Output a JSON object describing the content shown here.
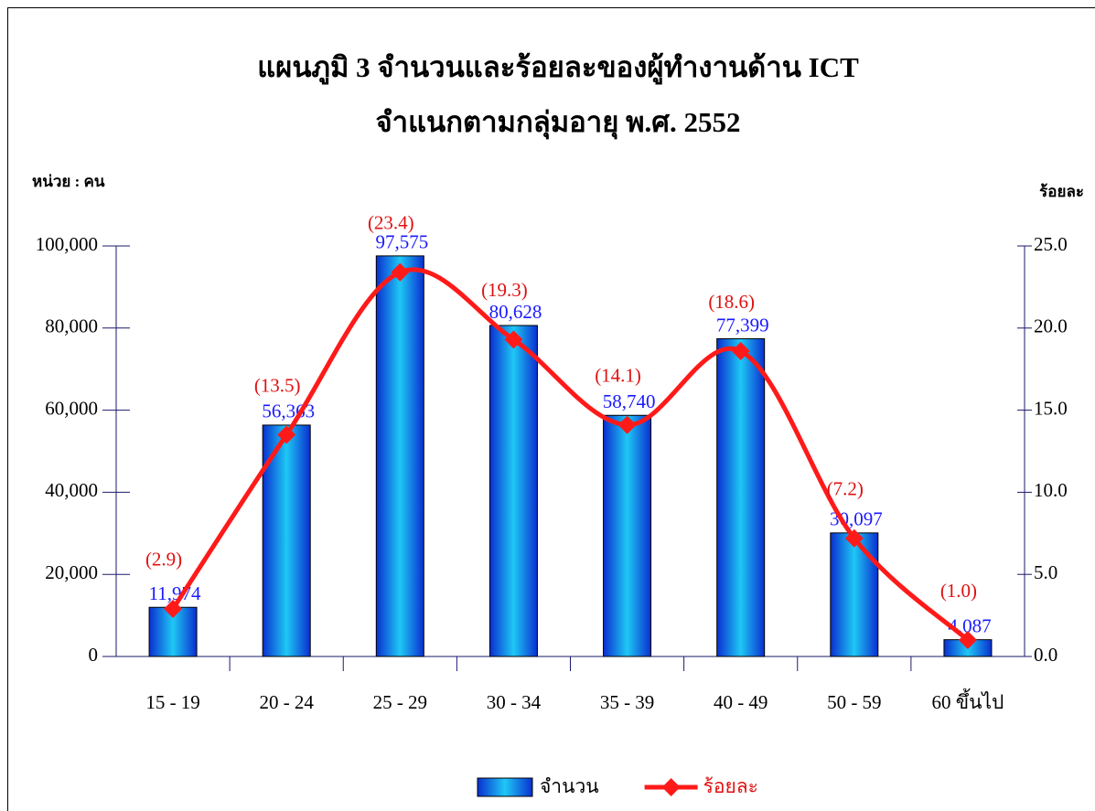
{
  "chart_data": {
    "type": "bar",
    "title": "แผนภูมิ 3   จำนวนและร้อยละของผู้ทำงานด้าน ICT",
    "subtitle": "จำแนกตามกลุ่มอายุ พ.ศ. 2552",
    "ylabel": "หน่วย : คน",
    "y2label": "ร้อยละ",
    "categories": [
      "15 - 19",
      "20 - 24",
      "25 - 29",
      "30 - 34",
      "35 - 39",
      "40 - 49",
      "50 - 59",
      "60 ขึ้นไป"
    ],
    "series": [
      {
        "name": "จำนวน",
        "type": "bar",
        "color": "#1ec8f5",
        "label_color": "#1a1aff",
        "values": [
          11974,
          56363,
          97575,
          80628,
          58740,
          77399,
          30097,
          4087
        ],
        "value_labels": [
          "11,974",
          "56,363",
          "97,575",
          "80,628",
          "58,740",
          "77,399",
          "30,097",
          "4,087"
        ]
      },
      {
        "name": "ร้อยละ",
        "type": "line",
        "axis": "y2",
        "color": "#ff1a1a",
        "label_color": "#e01010",
        "values": [
          2.9,
          13.5,
          23.4,
          19.3,
          14.1,
          18.6,
          7.2,
          1.0
        ],
        "value_labels": [
          "(2.9)",
          "(13.5)",
          "(23.4)",
          "(19.3)",
          "(14.1)",
          "(18.6)",
          "(7.2)",
          "(1.0)"
        ]
      }
    ],
    "ylim": [
      0,
      100000
    ],
    "yticks": [
      0,
      {
        "value": 20000,
        "label": "20,000"
      },
      {
        "value": 40000,
        "label": "40,000"
      },
      {
        "value": 60000,
        "label": "60,000"
      },
      {
        "value": 80000,
        "label": "80,000"
      },
      {
        "value": 100000,
        "label": "100,000"
      }
    ],
    "y2lim": [
      0,
      25
    ],
    "y2ticks": [
      {
        "value": 0,
        "label": "0.0"
      },
      {
        "value": 5,
        "label": "5.0"
      },
      {
        "value": 10,
        "label": "10.0"
      },
      {
        "value": 15,
        "label": "15.0"
      },
      {
        "value": 20,
        "label": "20.0"
      },
      {
        "value": 25,
        "label": "25.0"
      }
    ],
    "grid": false
  }
}
